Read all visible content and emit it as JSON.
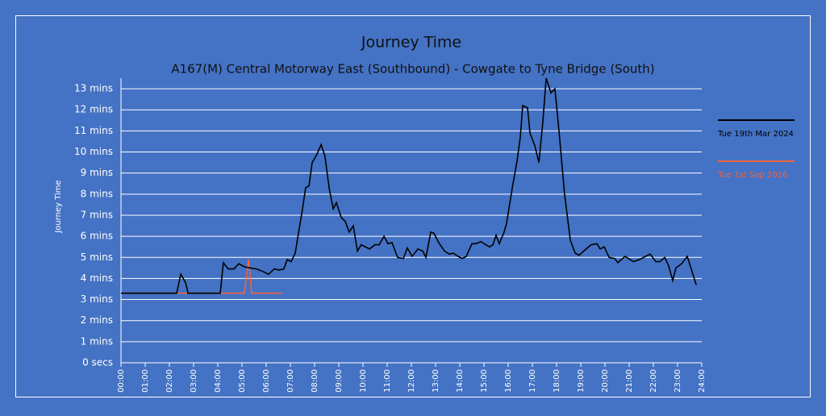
{
  "chart_data": {
    "type": "line",
    "title": "Journey Time",
    "subtitle": "A167(M) Central Motorway East (Southbound) - Cowgate to Tyne Bridge (South)",
    "y_label": "Journey Time",
    "xlim": [
      0,
      24
    ],
    "xticks": [
      {
        "value": 0,
        "label": "00:00"
      },
      {
        "value": 1,
        "label": "01:00"
      },
      {
        "value": 2,
        "label": "02:00"
      },
      {
        "value": 3,
        "label": "03:00"
      },
      {
        "value": 4,
        "label": "04:00"
      },
      {
        "value": 5,
        "label": "05:00"
      },
      {
        "value": 6,
        "label": "06:00"
      },
      {
        "value": 7,
        "label": "07:00"
      },
      {
        "value": 8,
        "label": "08:00"
      },
      {
        "value": 9,
        "label": "09:00"
      },
      {
        "value": 10,
        "label": "10:00"
      },
      {
        "value": 11,
        "label": "11:00"
      },
      {
        "value": 12,
        "label": "12:00"
      },
      {
        "value": 13,
        "label": "13:00"
      },
      {
        "value": 14,
        "label": "14:00"
      },
      {
        "value": 15,
        "label": "15:00"
      },
      {
        "value": 16,
        "label": "16:00"
      },
      {
        "value": 17,
        "label": "17:00"
      },
      {
        "value": 18,
        "label": "18:00"
      },
      {
        "value": 19,
        "label": "19:00"
      },
      {
        "value": 20,
        "label": "20:00"
      },
      {
        "value": 21,
        "label": "21:00"
      },
      {
        "value": 22,
        "label": "22:00"
      },
      {
        "value": 23,
        "label": "23:00"
      },
      {
        "value": 24,
        "label": "24:00"
      }
    ],
    "ylim": [
      0,
      13.5
    ],
    "yticks": [
      {
        "value": 0,
        "label": "0 secs"
      },
      {
        "value": 1,
        "label": "1 mins"
      },
      {
        "value": 2,
        "label": "2 mins"
      },
      {
        "value": 3,
        "label": "3 mins"
      },
      {
        "value": 4,
        "label": "4 mins"
      },
      {
        "value": 5,
        "label": "5 mins"
      },
      {
        "value": 6,
        "label": "6 mins"
      },
      {
        "value": 7,
        "label": "7 mins"
      },
      {
        "value": 8,
        "label": "8 mins"
      },
      {
        "value": 9,
        "label": "9 mins"
      },
      {
        "value": 10,
        "label": "10 mins"
      },
      {
        "value": 11,
        "label": "11 mins"
      },
      {
        "value": 12,
        "label": "12 mins"
      },
      {
        "value": 13,
        "label": "13 mins"
      }
    ],
    "grid": true,
    "legend": "right",
    "series": [
      {
        "name": "Tue 19th Mar 2024",
        "color": "#000000",
        "x": [
          0,
          2.3,
          2.47,
          2.67,
          2.77,
          4.1,
          4.23,
          4.43,
          4.67,
          4.87,
          5.1,
          5.33,
          5.6,
          5.83,
          6.1,
          6.33,
          6.53,
          6.73,
          6.87,
          7.03,
          7.2,
          7.5,
          7.63,
          7.77,
          7.9,
          8.1,
          8.27,
          8.43,
          8.6,
          8.77,
          8.9,
          9.1,
          9.27,
          9.43,
          9.6,
          9.77,
          9.93,
          10.27,
          10.5,
          10.67,
          10.87,
          11.03,
          11.2,
          11.43,
          11.67,
          11.83,
          12.03,
          12.27,
          12.47,
          12.6,
          12.8,
          12.93,
          13.13,
          13.37,
          13.57,
          13.73,
          13.93,
          14.1,
          14.27,
          14.5,
          14.67,
          14.87,
          15.07,
          15.23,
          15.37,
          15.5,
          15.63,
          15.83,
          15.93,
          16.17,
          16.37,
          16.5,
          16.6,
          16.8,
          16.9,
          17.1,
          17.27,
          17.43,
          17.57,
          17.77,
          17.93,
          18.1,
          18.33,
          18.57,
          18.77,
          18.93,
          19.17,
          19.43,
          19.67,
          19.8,
          19.97,
          20.17,
          20.4,
          20.53,
          20.83,
          21.17,
          21.43,
          21.67,
          21.87,
          22.1,
          22.27,
          22.47,
          22.63,
          22.8,
          22.93,
          23.17,
          23.4,
          23.77
        ],
        "values": [
          3.3,
          3.3,
          4.2,
          3.8,
          3.3,
          3.3,
          4.75,
          4.45,
          4.45,
          4.7,
          4.55,
          4.5,
          4.45,
          4.35,
          4.2,
          4.45,
          4.4,
          4.45,
          4.9,
          4.8,
          5.2,
          7.3,
          8.3,
          8.4,
          9.5,
          9.9,
          10.35,
          9.8,
          8.3,
          7.3,
          7.6,
          6.9,
          6.7,
          6.2,
          6.5,
          5.3,
          5.6,
          5.4,
          5.6,
          5.6,
          6.0,
          5.65,
          5.7,
          5.0,
          4.95,
          5.45,
          5.05,
          5.4,
          5.3,
          5.0,
          6.2,
          6.15,
          5.7,
          5.3,
          5.15,
          5.2,
          5.05,
          4.95,
          5.05,
          5.65,
          5.65,
          5.75,
          5.6,
          5.5,
          5.6,
          6.05,
          5.65,
          6.2,
          6.6,
          8.3,
          9.6,
          10.7,
          12.2,
          12.1,
          10.9,
          10.3,
          9.5,
          11.4,
          13.5,
          12.8,
          13.0,
          11.0,
          8.0,
          5.8,
          5.2,
          5.1,
          5.35,
          5.6,
          5.65,
          5.4,
          5.5,
          5.0,
          4.95,
          4.75,
          5.05,
          4.8,
          4.9,
          5.05,
          5.15,
          4.8,
          4.8,
          5.0,
          4.6,
          3.9,
          4.5,
          4.7,
          5.05,
          3.7
        ]
      },
      {
        "name": "Tue 1st Sep 2026",
        "color": "#f0643c",
        "x": [
          0,
          1,
          2,
          2.6,
          3,
          4,
          5.1,
          5.27,
          5.4,
          6.67
        ],
        "values": [
          3.3,
          3.3,
          3.3,
          3.3,
          3.3,
          3.3,
          3.3,
          4.9,
          3.3,
          3.3
        ]
      }
    ]
  }
}
